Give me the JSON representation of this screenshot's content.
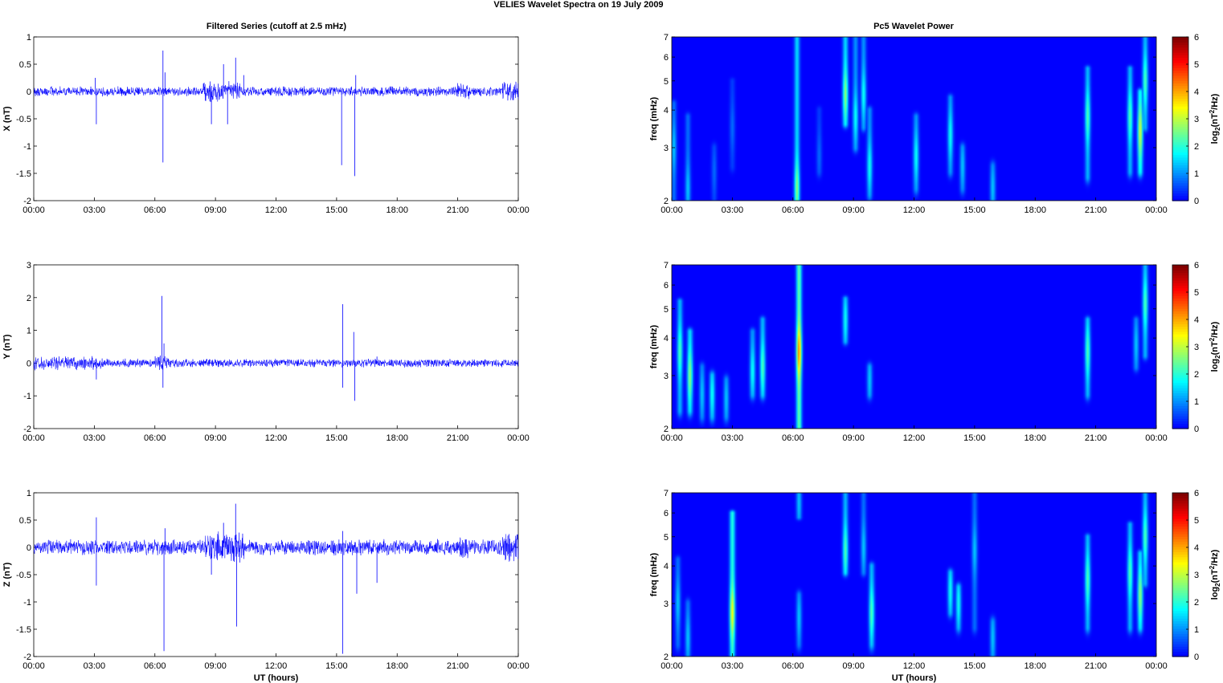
{
  "figure": {
    "suptitle": "VELIES Wavelet Spectra on 19 July      2009",
    "left_title": "Filtered Series (cutoff at 2.5 mHz)",
    "right_title": "Pc5 Wavelet Power"
  },
  "chart_data": [
    {
      "type": "line",
      "name": "x-series",
      "ylabel": "X (nT)",
      "xlabel": "",
      "xlim": [
        0,
        24
      ],
      "ylim": [
        -2,
        1
      ],
      "yticks": [
        -2,
        -1.5,
        -1,
        -0.5,
        0,
        0.5,
        1
      ],
      "xtick_labels": [
        "00:00",
        "03:00",
        "06:00",
        "09:00",
        "12:00",
        "15:00",
        "18:00",
        "21:00",
        "00:00"
      ],
      "color": "#0000ff",
      "noise_amplitude": 0.07,
      "active_windows": [
        {
          "from": 8.4,
          "to": 10.2,
          "amp": 0.15
        },
        {
          "from": 21.0,
          "to": 21.6,
          "amp": 0.12
        },
        {
          "from": 23.2,
          "to": 24.0,
          "amp": 0.15
        }
      ],
      "spikes": [
        [
          3.1,
          -0.6
        ],
        [
          3.05,
          0.25
        ],
        [
          6.4,
          0.75
        ],
        [
          6.4,
          -1.3
        ],
        [
          6.5,
          0.35
        ],
        [
          8.8,
          -0.6
        ],
        [
          9.4,
          0.5
        ],
        [
          9.6,
          -0.6
        ],
        [
          10.0,
          0.62
        ],
        [
          10.4,
          0.3
        ],
        [
          15.25,
          -1.35
        ],
        [
          15.9,
          -1.55
        ],
        [
          15.95,
          0.3
        ]
      ]
    },
    {
      "type": "heatmap",
      "name": "x-power",
      "ylabel": "freq (mHz)",
      "xlabel": "",
      "xlim": [
        0,
        24
      ],
      "ylim": [
        2,
        7
      ],
      "yscale": "log",
      "yticks": [
        2,
        3,
        4,
        5,
        6,
        7
      ],
      "xtick_labels": [
        "00:00",
        "03:00",
        "06:00",
        "09:00",
        "12:00",
        "15:00",
        "18:00",
        "21:00",
        "00:00"
      ],
      "colorbar_label": "log2(nT2/Hz)",
      "colorbar_ticks": [
        0,
        1,
        2,
        3,
        4,
        5,
        6
      ],
      "clim": [
        0,
        6
      ],
      "colormap": "jet",
      "blobs": [
        [
          0.1,
          3.0,
          1.5,
          2.0,
          4.2,
          2.2
        ],
        [
          0.8,
          2.2,
          1.5,
          2.0,
          3.8,
          1.8
        ],
        [
          2.1,
          2.5,
          0.8,
          2.0,
          3.0,
          0.9
        ],
        [
          3.0,
          3.5,
          0.8,
          2.6,
          5.0,
          0.8
        ],
        [
          6.2,
          2.2,
          3.0,
          2.0,
          7.0,
          2.8
        ],
        [
          7.3,
          2.8,
          0.8,
          2.5,
          4.0,
          0.7
        ],
        [
          8.6,
          4.5,
          3.0,
          3.6,
          7.0,
          3.2
        ],
        [
          9.1,
          3.8,
          2.0,
          3.0,
          7.0,
          2.6
        ],
        [
          9.5,
          4.5,
          2.0,
          3.5,
          7.0,
          2.4
        ],
        [
          9.8,
          2.6,
          2.0,
          2.1,
          4.0,
          2.4
        ],
        [
          12.1,
          2.8,
          2.0,
          2.2,
          3.8,
          2.0
        ],
        [
          13.8,
          3.3,
          2.0,
          2.5,
          4.4,
          2.2
        ],
        [
          14.4,
          2.6,
          1.5,
          2.2,
          3.0,
          1.6
        ],
        [
          15.9,
          2.2,
          1.5,
          2.0,
          2.6,
          2.0
        ],
        [
          20.6,
          3.8,
          2.5,
          2.4,
          5.5,
          2.6
        ],
        [
          22.7,
          3.8,
          2.5,
          2.5,
          5.5,
          2.8
        ],
        [
          23.2,
          3.4,
          3.5,
          2.5,
          4.6,
          3.2
        ],
        [
          23.45,
          5.0,
          2.5,
          3.5,
          7.0,
          2.6
        ]
      ]
    },
    {
      "type": "line",
      "name": "y-series",
      "ylabel": "Y (nT)",
      "xlabel": "",
      "xlim": [
        0,
        24
      ],
      "ylim": [
        -2,
        3
      ],
      "yticks": [
        -2,
        -1,
        0,
        1,
        2,
        3
      ],
      "xtick_labels": [
        "00:00",
        "03:00",
        "06:00",
        "09:00",
        "12:00",
        "15:00",
        "18:00",
        "21:00",
        "00:00"
      ],
      "color": "#0000ff",
      "noise_amplitude": 0.1,
      "active_windows": [
        {
          "from": 0.0,
          "to": 3.5,
          "amp": 0.16
        },
        {
          "from": 6.0,
          "to": 6.7,
          "amp": 0.2
        }
      ],
      "spikes": [
        [
          3.1,
          -0.5
        ],
        [
          6.35,
          2.05
        ],
        [
          6.4,
          -0.75
        ],
        [
          6.45,
          0.6
        ],
        [
          15.3,
          1.8
        ],
        [
          15.3,
          -0.75
        ],
        [
          15.85,
          0.95
        ],
        [
          15.9,
          -1.15
        ],
        [
          17.0,
          0.2
        ]
      ]
    },
    {
      "type": "heatmap",
      "name": "y-power",
      "ylabel": "freq (mHz)",
      "xlabel": "",
      "xlim": [
        0,
        24
      ],
      "ylim": [
        2,
        7
      ],
      "yscale": "log",
      "yticks": [
        2,
        3,
        4,
        5,
        6,
        7
      ],
      "xtick_labels": [
        "00:00",
        "03:00",
        "06:00",
        "09:00",
        "12:00",
        "15:00",
        "18:00",
        "21:00",
        "00:00"
      ],
      "colorbar_label": "log2(nT2/Hz)",
      "colorbar_ticks": [
        0,
        1,
        2,
        3,
        4,
        5,
        6
      ],
      "clim": [
        0,
        6
      ],
      "colormap": "jet",
      "blobs": [
        [
          0.4,
          3.6,
          2.5,
          2.3,
          5.3,
          3.0
        ],
        [
          0.9,
          3.0,
          3.0,
          2.3,
          4.2,
          3.3
        ],
        [
          1.5,
          2.6,
          1.5,
          2.2,
          3.2,
          1.8
        ],
        [
          2.0,
          2.6,
          2.0,
          2.2,
          3.0,
          2.2
        ],
        [
          2.7,
          2.5,
          1.5,
          2.2,
          2.9,
          1.7
        ],
        [
          4.0,
          3.1,
          2.0,
          2.6,
          4.2,
          2.0
        ],
        [
          4.5,
          3.2,
          2.5,
          2.6,
          4.6,
          2.4
        ],
        [
          6.3,
          3.6,
          4.8,
          2.0,
          7.0,
          3.0
        ],
        [
          8.6,
          4.6,
          2.0,
          3.9,
          5.4,
          1.6
        ],
        [
          9.8,
          2.9,
          1.5,
          2.6,
          3.2,
          1.8
        ],
        [
          20.6,
          3.6,
          2.5,
          2.6,
          4.6,
          2.4
        ],
        [
          23.0,
          3.8,
          1.5,
          3.2,
          4.6,
          1.6
        ],
        [
          23.45,
          5.2,
          2.5,
          3.5,
          7.0,
          2.6
        ]
      ]
    },
    {
      "type": "line",
      "name": "z-series",
      "ylabel": "Z (nT)",
      "xlabel": "UT (hours)",
      "xlim": [
        0,
        24
      ],
      "ylim": [
        -2,
        1
      ],
      "yticks": [
        -2,
        -1.5,
        -1,
        -0.5,
        0,
        0.5,
        1
      ],
      "xtick_labels": [
        "00:00",
        "03:00",
        "06:00",
        "09:00",
        "12:00",
        "15:00",
        "18:00",
        "21:00",
        "00:00"
      ],
      "color": "#0000ff",
      "noise_amplitude": 0.11,
      "active_windows": [
        {
          "from": 8.5,
          "to": 10.5,
          "amp": 0.22
        },
        {
          "from": 21.0,
          "to": 21.6,
          "amp": 0.18
        },
        {
          "from": 23.2,
          "to": 24.0,
          "amp": 0.2
        }
      ],
      "spikes": [
        [
          3.1,
          0.55
        ],
        [
          3.1,
          -0.7
        ],
        [
          6.45,
          -1.9
        ],
        [
          6.5,
          0.35
        ],
        [
          8.8,
          -0.5
        ],
        [
          9.4,
          0.45
        ],
        [
          10.0,
          0.8
        ],
        [
          10.05,
          -1.45
        ],
        [
          15.3,
          -1.95
        ],
        [
          15.3,
          0.3
        ],
        [
          16.0,
          -0.85
        ],
        [
          17.0,
          -0.65
        ]
      ]
    },
    {
      "type": "heatmap",
      "name": "z-power",
      "ylabel": "freq (mHz)",
      "xlabel": "UT (hours)",
      "xlim": [
        0,
        24
      ],
      "ylim": [
        2,
        7
      ],
      "yscale": "log",
      "yticks": [
        2,
        3,
        4,
        5,
        6,
        7
      ],
      "xtick_labels": [
        "00:00",
        "03:00",
        "06:00",
        "09:00",
        "12:00",
        "15:00",
        "18:00",
        "21:00",
        "00:00"
      ],
      "colorbar_label": "log2(nT2/Hz)",
      "colorbar_ticks": [
        0,
        1,
        2,
        3,
        4,
        5,
        6
      ],
      "clim": [
        0,
        6
      ],
      "colormap": "jet",
      "blobs": [
        [
          0.3,
          3.0,
          1.5,
          2.2,
          4.2,
          2.0
        ],
        [
          0.8,
          2.3,
          1.5,
          2.0,
          3.0,
          1.8
        ],
        [
          3.0,
          2.8,
          3.8,
          2.0,
          6.0,
          2.8
        ],
        [
          6.3,
          2.7,
          1.5,
          2.2,
          3.2,
          1.8
        ],
        [
          6.3,
          6.5,
          1.5,
          5.8,
          7.0,
          1.8
        ],
        [
          8.6,
          4.5,
          2.5,
          3.8,
          7.0,
          2.4
        ],
        [
          9.5,
          4.6,
          1.5,
          3.8,
          7.0,
          2.0
        ],
        [
          9.9,
          2.8,
          2.5,
          2.2,
          4.0,
          2.4
        ],
        [
          13.8,
          3.3,
          2.0,
          2.8,
          3.8,
          2.2
        ],
        [
          14.2,
          3.0,
          2.0,
          2.5,
          3.4,
          2.0
        ],
        [
          15.0,
          4.5,
          1.5,
          2.5,
          7.0,
          1.6
        ],
        [
          15.9,
          2.3,
          1.5,
          2.0,
          2.6,
          2.0
        ],
        [
          20.6,
          3.6,
          2.5,
          2.5,
          5.0,
          2.6
        ],
        [
          22.7,
          3.8,
          2.5,
          2.5,
          5.5,
          2.8
        ],
        [
          23.2,
          3.2,
          3.0,
          2.5,
          4.4,
          3.0
        ],
        [
          23.45,
          5.0,
          2.5,
          3.5,
          7.0,
          2.6
        ]
      ]
    }
  ]
}
